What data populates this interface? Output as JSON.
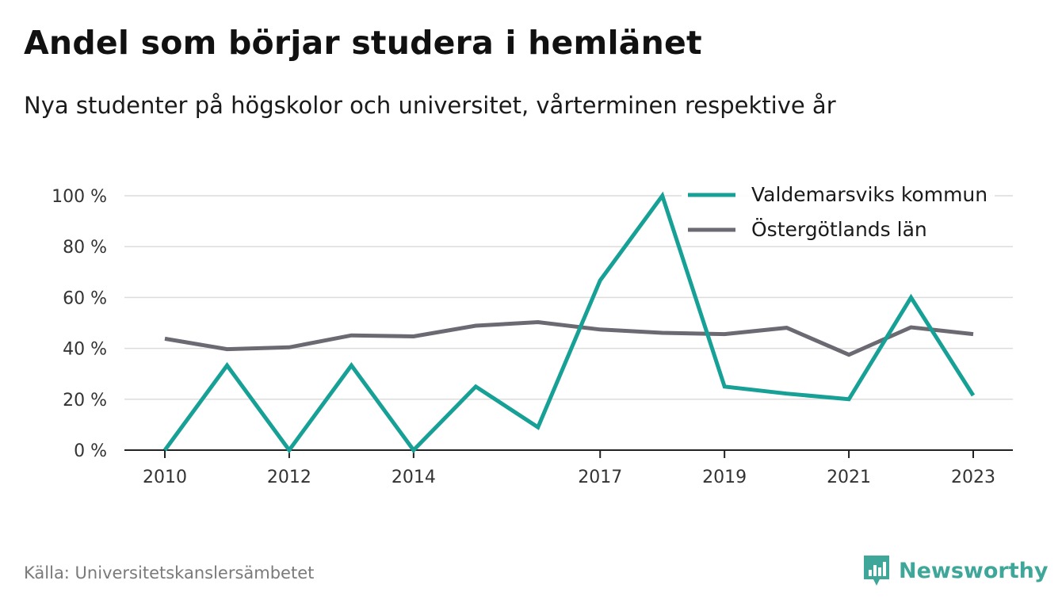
{
  "header": {
    "title": "Andel som börjar studera i hemlänet",
    "subtitle": "Nya studenter på högskolor och universitet, vårterminen respektive år"
  },
  "footer": {
    "source": "Källa: Universitetskanslersämbetet",
    "brand": "Newsworthy",
    "brand_icon": "bar-chart-badge-icon",
    "brand_color": "#3fa69a"
  },
  "chart_data": {
    "type": "line",
    "x": [
      2010,
      2011,
      2012,
      2013,
      2014,
      2015,
      2016,
      2017,
      2018,
      2019,
      2020,
      2021,
      2022,
      2023
    ],
    "x_tick_labels": [
      "2010",
      "2012",
      "2014",
      "2017",
      "2019",
      "2021",
      "2023"
    ],
    "y_tick_labels": [
      "0 %",
      "20 %",
      "40 %",
      "60 %",
      "80 %",
      "100 %"
    ],
    "ylim": [
      0,
      100
    ],
    "grid": true,
    "legend_position": "top-right",
    "series": [
      {
        "name": "Valdemarsviks kommun",
        "color": "#16a096",
        "values": [
          0,
          33.3,
          0,
          33.3,
          0,
          25,
          9,
          66.7,
          100,
          25,
          22.2,
          20,
          60,
          21.5
        ]
      },
      {
        "name": "Östergötlands län",
        "color": "#6b6a73",
        "values": [
          43.8,
          39.7,
          40.4,
          45.1,
          44.7,
          48.9,
          50.3,
          47.4,
          46.1,
          45.6,
          48.1,
          37.5,
          48.3,
          45.6
        ]
      }
    ]
  }
}
